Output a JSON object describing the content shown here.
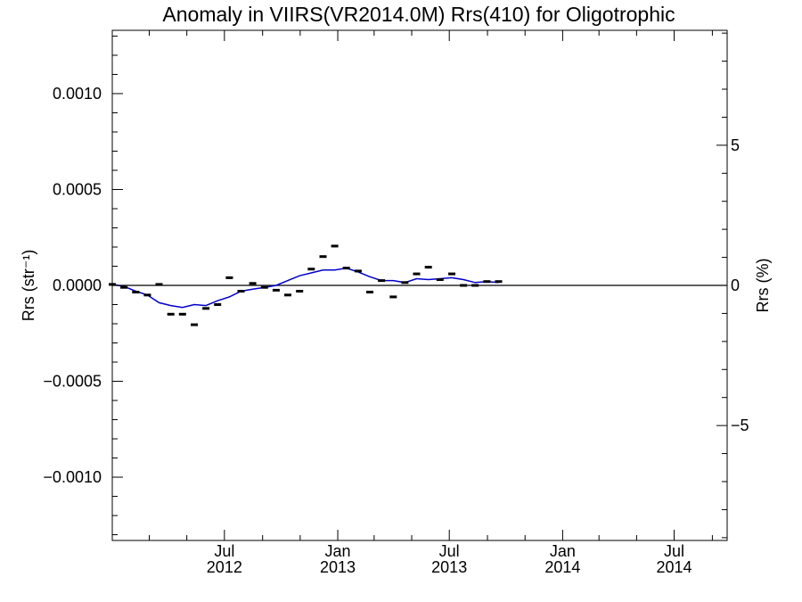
{
  "chart_data": {
    "type": "line",
    "title": "Anomaly in VIIRS(VR2014.0M) Rrs(410) for Oligotrophic",
    "ylabel": "Rrs (str⁻¹)",
    "y2label": "Rrs (%)",
    "ylim": [
      -0.00133,
      0.00133
    ],
    "y2lim": [
      -9.1,
      9.1
    ],
    "xlim": [
      "2012-01-01",
      "2014-09-25"
    ],
    "y_ticks": [
      -0.001,
      -0.0005,
      0.0,
      0.0005,
      0.001
    ],
    "y_tick_labels": [
      "−0.0010",
      "−0.0005",
      "0.0000",
      "0.0005",
      "0.0010"
    ],
    "y2_ticks": [
      -5,
      0,
      5
    ],
    "y2_tick_labels": [
      "−5",
      "0",
      "5"
    ],
    "x_ticks": [
      {
        "date": "2012-07-01",
        "month": "Jul",
        "year": "2012"
      },
      {
        "date": "2013-01-01",
        "month": "Jan",
        "year": "2013"
      },
      {
        "date": "2013-07-01",
        "month": "Jul",
        "year": "2013"
      },
      {
        "date": "2014-01-01",
        "month": "Jan",
        "year": "2014"
      },
      {
        "date": "2014-07-01",
        "month": "Jul",
        "year": "2014"
      }
    ],
    "zero_line": 0.0,
    "grid": false,
    "series": [
      {
        "kind": "markers",
        "color": "#000000",
        "points": [
          {
            "x": "2012-01-01",
            "y": 5e-06
          },
          {
            "x": "2012-01-20",
            "y": -1e-05
          },
          {
            "x": "2012-02-08",
            "y": -3.5e-05
          },
          {
            "x": "2012-02-27",
            "y": -5e-05
          },
          {
            "x": "2012-03-17",
            "y": 5e-06
          },
          {
            "x": "2012-04-05",
            "y": -0.00015
          },
          {
            "x": "2012-04-24",
            "y": -0.00015
          },
          {
            "x": "2012-05-13",
            "y": -0.000205
          },
          {
            "x": "2012-06-01",
            "y": -0.00012
          },
          {
            "x": "2012-06-20",
            "y": -0.0001
          },
          {
            "x": "2012-07-09",
            "y": 4e-05
          },
          {
            "x": "2012-07-28",
            "y": -3e-05
          },
          {
            "x": "2012-08-16",
            "y": 1e-05
          },
          {
            "x": "2012-09-04",
            "y": -1e-05
          },
          {
            "x": "2012-09-23",
            "y": -2.5e-05
          },
          {
            "x": "2012-10-12",
            "y": -5e-05
          },
          {
            "x": "2012-10-31",
            "y": -3e-05
          },
          {
            "x": "2012-11-19",
            "y": 8.5e-05
          },
          {
            "x": "2012-12-08",
            "y": 0.00015
          },
          {
            "x": "2012-12-27",
            "y": 0.000205
          },
          {
            "x": "2013-01-15",
            "y": 9e-05
          },
          {
            "x": "2013-02-03",
            "y": 7.5e-05
          },
          {
            "x": "2013-02-22",
            "y": -3.5e-05
          },
          {
            "x": "2013-03-13",
            "y": 2.5e-05
          },
          {
            "x": "2013-04-01",
            "y": -6e-05
          },
          {
            "x": "2013-04-20",
            "y": 1.5e-05
          },
          {
            "x": "2013-05-09",
            "y": 6e-05
          },
          {
            "x": "2013-05-28",
            "y": 9.5e-05
          },
          {
            "x": "2013-06-16",
            "y": 3e-05
          },
          {
            "x": "2013-07-05",
            "y": 6e-05
          },
          {
            "x": "2013-07-24",
            "y": 0.0
          },
          {
            "x": "2013-08-12",
            "y": 0.0
          },
          {
            "x": "2013-08-31",
            "y": 2e-05
          },
          {
            "x": "2013-09-19",
            "y": 2e-05
          }
        ]
      },
      {
        "kind": "line",
        "color": "#0000cc",
        "points": [
          {
            "x": "2012-01-01",
            "y": 5e-06
          },
          {
            "x": "2012-01-20",
            "y": -5e-06
          },
          {
            "x": "2012-02-08",
            "y": -3e-05
          },
          {
            "x": "2012-02-27",
            "y": -5e-05
          },
          {
            "x": "2012-03-17",
            "y": -9e-05
          },
          {
            "x": "2012-04-05",
            "y": -0.000105
          },
          {
            "x": "2012-04-24",
            "y": -0.000115
          },
          {
            "x": "2012-05-13",
            "y": -0.0001
          },
          {
            "x": "2012-06-01",
            "y": -0.000105
          },
          {
            "x": "2012-06-20",
            "y": -8e-05
          },
          {
            "x": "2012-07-09",
            "y": -6e-05
          },
          {
            "x": "2012-07-28",
            "y": -3e-05
          },
          {
            "x": "2012-08-16",
            "y": -2e-05
          },
          {
            "x": "2012-09-04",
            "y": -1e-05
          },
          {
            "x": "2012-09-23",
            "y": 0.0
          },
          {
            "x": "2012-10-12",
            "y": 2.5e-05
          },
          {
            "x": "2012-10-31",
            "y": 5e-05
          },
          {
            "x": "2012-11-19",
            "y": 6.5e-05
          },
          {
            "x": "2012-12-08",
            "y": 8e-05
          },
          {
            "x": "2012-12-27",
            "y": 8e-05
          },
          {
            "x": "2013-01-15",
            "y": 9e-05
          },
          {
            "x": "2013-02-03",
            "y": 7e-05
          },
          {
            "x": "2013-02-22",
            "y": 4.5e-05
          },
          {
            "x": "2013-03-13",
            "y": 2.5e-05
          },
          {
            "x": "2013-04-01",
            "y": 2.5e-05
          },
          {
            "x": "2013-04-20",
            "y": 1.5e-05
          },
          {
            "x": "2013-05-09",
            "y": 3.5e-05
          },
          {
            "x": "2013-05-28",
            "y": 3e-05
          },
          {
            "x": "2013-06-16",
            "y": 3.5e-05
          },
          {
            "x": "2013-07-05",
            "y": 4e-05
          },
          {
            "x": "2013-07-24",
            "y": 3e-05
          },
          {
            "x": "2013-08-12",
            "y": 1.5e-05
          },
          {
            "x": "2013-08-31",
            "y": 2e-05
          },
          {
            "x": "2013-09-19",
            "y": 1.5e-05
          }
        ]
      }
    ]
  }
}
